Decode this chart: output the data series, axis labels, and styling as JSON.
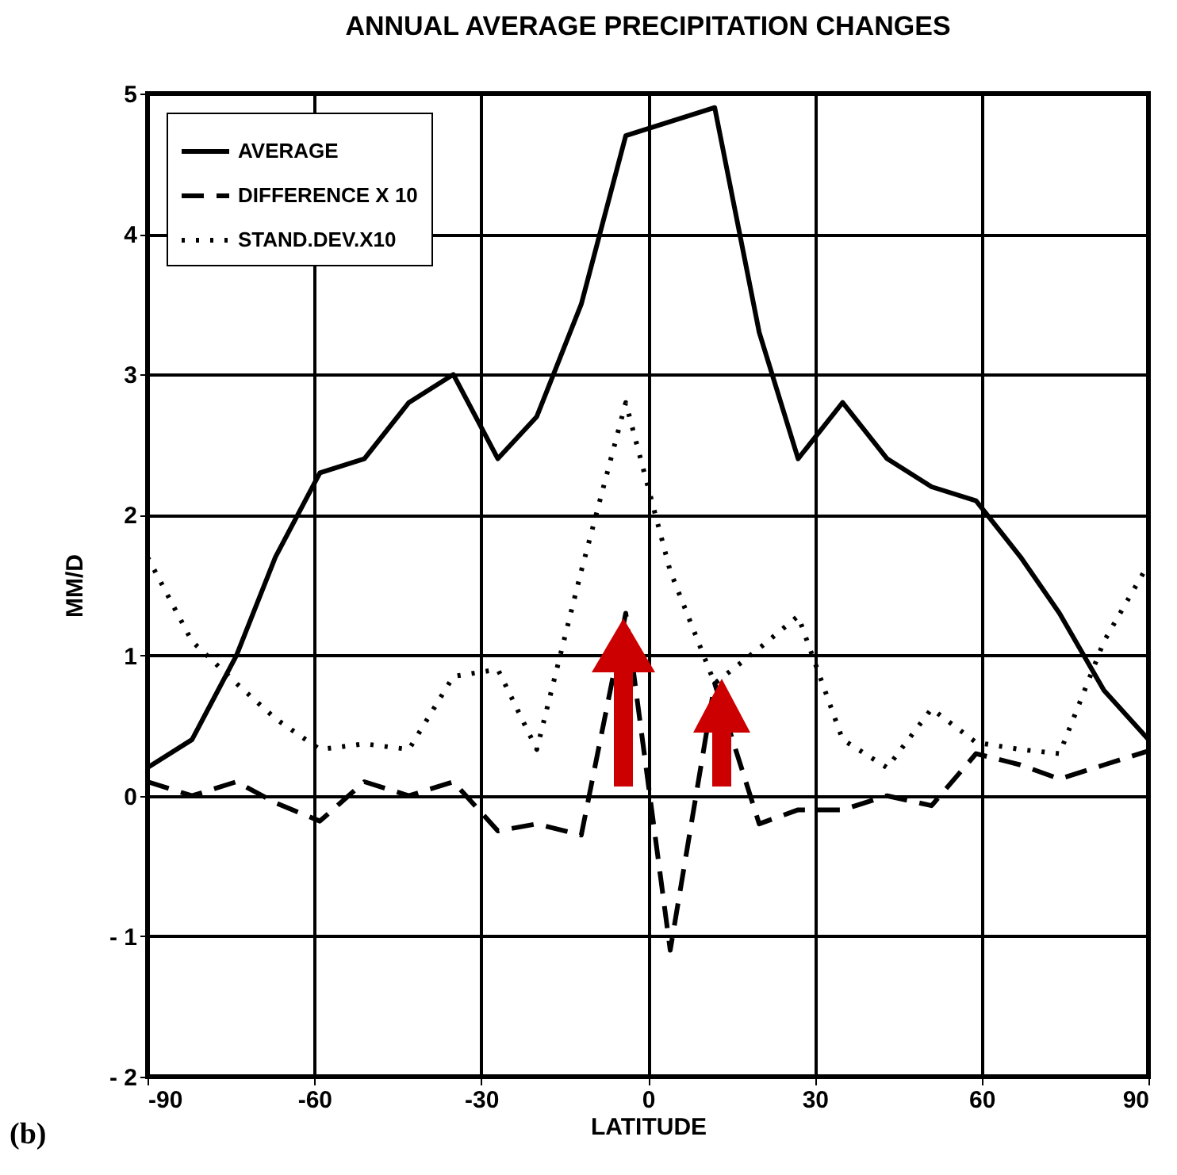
{
  "chart_data": {
    "type": "line",
    "title": "ANNUAL AVERAGE PRECIPITATION CHANGES",
    "xlabel": "LATITUDE",
    "ylabel": "MM/D",
    "x": [
      -90,
      -82,
      -74,
      -67,
      -59,
      -51,
      -43,
      -35,
      -27,
      -20,
      -12,
      -4,
      4,
      12,
      20,
      27,
      35,
      43,
      51,
      59,
      67,
      74,
      82,
      90
    ],
    "series": [
      {
        "name": "AVERAGE",
        "color": "#000000",
        "line_style": "solid",
        "values": [
          0.2,
          0.4,
          1.0,
          1.7,
          2.3,
          2.4,
          2.8,
          3.0,
          2.4,
          2.7,
          3.5,
          4.7,
          4.8,
          4.9,
          3.3,
          2.4,
          2.8,
          2.4,
          2.2,
          2.1,
          1.7,
          1.3,
          0.75,
          0.4
        ]
      },
      {
        "name": "DIFFERENCE X 10",
        "color": "#000000",
        "line_style": "dashed",
        "values": [
          0.1,
          0.0,
          0.1,
          -0.05,
          -0.18,
          0.1,
          0.0,
          0.1,
          -0.25,
          -0.2,
          -0.28,
          1.3,
          -1.1,
          0.8,
          -0.2,
          -0.1,
          -0.1,
          0.0,
          -0.07,
          0.3,
          0.22,
          0.12,
          0.22,
          0.32
        ]
      },
      {
        "name": "STAND.DEV.X10",
        "color": "#000000",
        "line_style": "dotted",
        "values": [
          1.7,
          1.1,
          0.8,
          0.55,
          0.33,
          0.37,
          0.33,
          0.85,
          0.9,
          0.33,
          1.6,
          2.8,
          1.6,
          0.8,
          1.05,
          1.28,
          0.4,
          0.2,
          0.62,
          0.38,
          0.33,
          0.3,
          1.1,
          1.65
        ]
      }
    ],
    "xlim": [
      -90,
      90
    ],
    "xticks": [
      -90,
      -60,
      -30,
      0,
      30,
      60,
      90
    ],
    "ylim": [
      -2,
      5
    ],
    "yticks": [
      {
        "value": -2,
        "label": "- 2"
      },
      {
        "value": -1,
        "label": "- 1"
      },
      0,
      1,
      2,
      3,
      4,
      5
    ],
    "grid": true,
    "legend": "top left",
    "marker": "none",
    "annotations": [
      "(b)"
    ]
  }
}
